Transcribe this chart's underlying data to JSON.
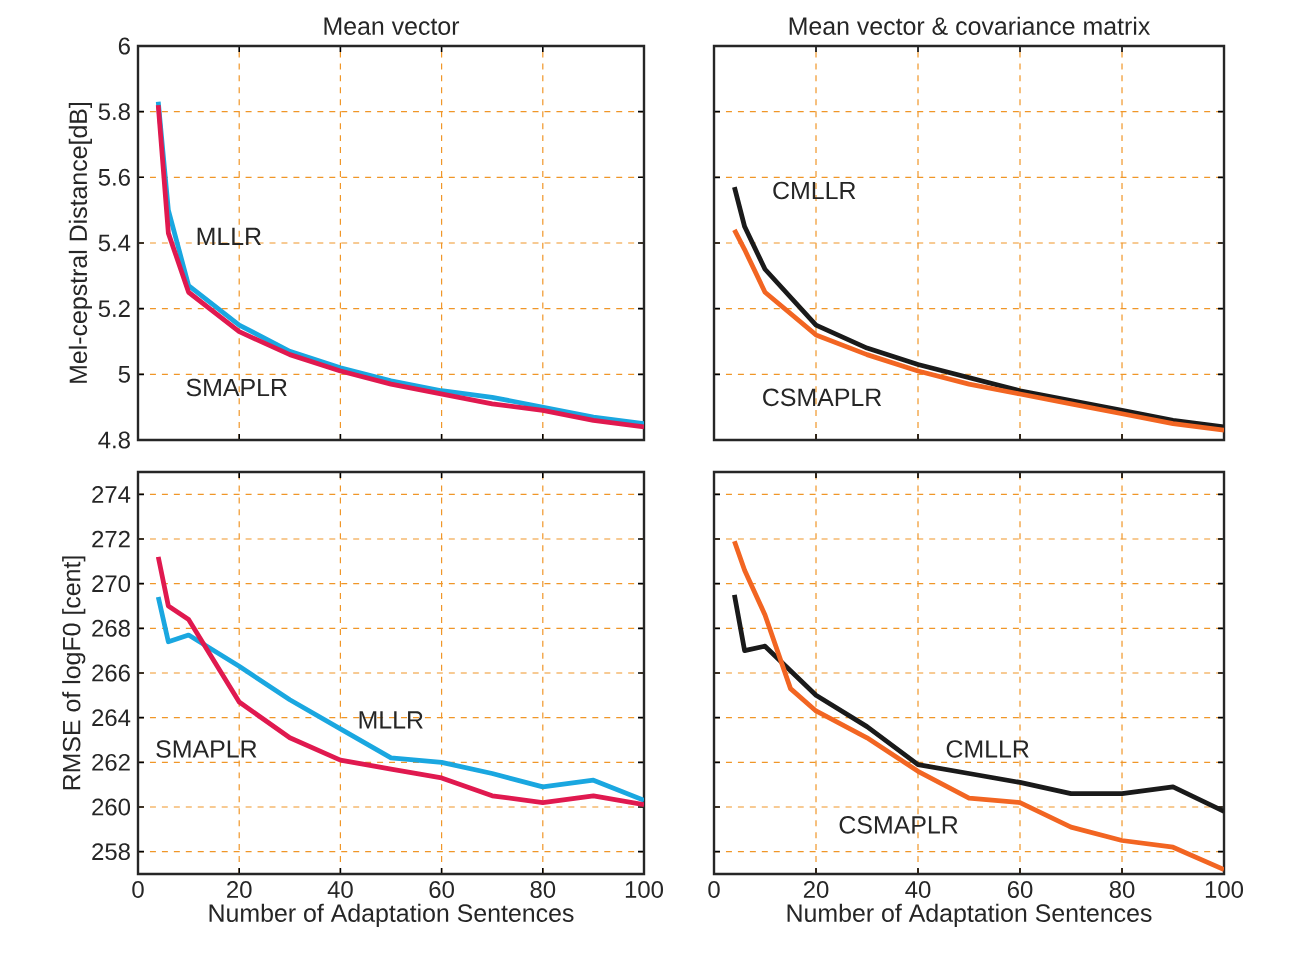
{
  "chart_data": [
    {
      "type": "line",
      "title": "Mean vector",
      "ylabel": "Mel-cepstral Distance[dB]",
      "xlim": [
        0,
        100
      ],
      "xticks": [
        0,
        20,
        40,
        60,
        80,
        100
      ],
      "ylim": [
        4.8,
        6
      ],
      "yticks": [
        4.8,
        5,
        5.2,
        5.4,
        5.6,
        5.8,
        6
      ],
      "grid": true,
      "tick_labels": "y",
      "legend": false,
      "marker": "none",
      "line_style": "solid",
      "series": [
        {
          "name": "MLLR",
          "color": "#1aa7e0",
          "x": [
            4,
            6,
            10,
            20,
            30,
            40,
            50,
            60,
            70,
            80,
            90,
            100
          ],
          "values": [
            5.83,
            5.5,
            5.27,
            5.15,
            5.07,
            5.02,
            4.98,
            4.95,
            4.93,
            4.9,
            4.87,
            4.85
          ]
        },
        {
          "name": "SMAPLR",
          "color": "#e0194f",
          "x": [
            4,
            6,
            10,
            20,
            30,
            40,
            50,
            60,
            70,
            80,
            90,
            100
          ],
          "values": [
            5.82,
            5.43,
            5.25,
            5.13,
            5.06,
            5.01,
            4.97,
            4.94,
            4.91,
            4.89,
            4.86,
            4.84
          ]
        }
      ]
    },
    {
      "type": "line",
      "title": "Mean vector & covariance matrix",
      "xlim": [
        0,
        100
      ],
      "xticks": [
        0,
        20,
        40,
        60,
        80,
        100
      ],
      "ylim": [
        4.8,
        6
      ],
      "yticks": [
        4.8,
        5,
        5.2,
        5.4,
        5.6,
        5.8,
        6
      ],
      "grid": true,
      "tick_labels": false,
      "legend": false,
      "marker": "none",
      "line_style": "solid",
      "series": [
        {
          "name": "CMLLR",
          "color": "#1a1a1a",
          "x": [
            4,
            6,
            10,
            20,
            30,
            40,
            50,
            60,
            70,
            80,
            90,
            100
          ],
          "values": [
            5.57,
            5.45,
            5.32,
            5.15,
            5.08,
            5.03,
            4.99,
            4.95,
            4.92,
            4.89,
            4.86,
            4.84
          ]
        },
        {
          "name": "CSMAPLR",
          "color": "#f26522",
          "x": [
            4,
            6,
            10,
            20,
            30,
            40,
            50,
            60,
            70,
            80,
            90,
            100
          ],
          "values": [
            5.44,
            5.38,
            5.25,
            5.12,
            5.06,
            5.01,
            4.97,
            4.94,
            4.91,
            4.88,
            4.85,
            4.83
          ]
        }
      ]
    },
    {
      "type": "line",
      "xlabel": "Number of Adaptation Sentences",
      "ylabel": "RMSE of logF0 [cent]",
      "xlim": [
        0,
        100
      ],
      "xticks": [
        0,
        20,
        40,
        60,
        80,
        100
      ],
      "ylim": [
        257,
        275
      ],
      "yticks": [
        258,
        260,
        262,
        264,
        266,
        268,
        270,
        272,
        274
      ],
      "grid": true,
      "legend": false,
      "marker": "none",
      "line_style": "solid",
      "series": [
        {
          "name": "MLLR",
          "color": "#1aa7e0",
          "x": [
            4,
            6,
            10,
            20,
            30,
            40,
            50,
            60,
            70,
            80,
            90,
            100
          ],
          "values": [
            269.4,
            267.4,
            267.7,
            266.3,
            264.8,
            263.5,
            262.2,
            262.0,
            261.5,
            260.9,
            261.2,
            260.3
          ]
        },
        {
          "name": "SMAPLR",
          "color": "#e0194f",
          "x": [
            4,
            6,
            10,
            20,
            30,
            40,
            50,
            60,
            70,
            80,
            90,
            100
          ],
          "values": [
            271.2,
            269.0,
            268.4,
            264.7,
            263.1,
            262.1,
            261.7,
            261.3,
            260.5,
            260.2,
            260.5,
            260.1
          ]
        }
      ]
    },
    {
      "type": "line",
      "xlabel": "Number of Adaptation Sentences",
      "xlim": [
        0,
        100
      ],
      "xticks": [
        0,
        20,
        40,
        60,
        80,
        100
      ],
      "ylim": [
        257,
        275
      ],
      "yticks": [
        258,
        260,
        262,
        264,
        266,
        268,
        270,
        272,
        274
      ],
      "grid": true,
      "tick_labels": "x",
      "legend": false,
      "marker": "none",
      "line_style": "solid",
      "series": [
        {
          "name": "CMLLR",
          "color": "#1a1a1a",
          "x": [
            4,
            6,
            10,
            20,
            30,
            40,
            50,
            60,
            70,
            80,
            90,
            100
          ],
          "values": [
            269.5,
            267.0,
            267.2,
            265.0,
            263.6,
            261.9,
            261.5,
            261.1,
            260.6,
            260.6,
            260.9,
            259.8
          ]
        },
        {
          "name": "CSMAPLR",
          "color": "#f26522",
          "x": [
            4,
            6,
            10,
            15,
            20,
            30,
            40,
            50,
            60,
            70,
            80,
            90,
            100
          ],
          "values": [
            271.9,
            270.6,
            268.6,
            265.3,
            264.3,
            263.1,
            261.6,
            260.4,
            260.2,
            259.1,
            258.5,
            258.2,
            257.2
          ]
        }
      ]
    }
  ]
}
